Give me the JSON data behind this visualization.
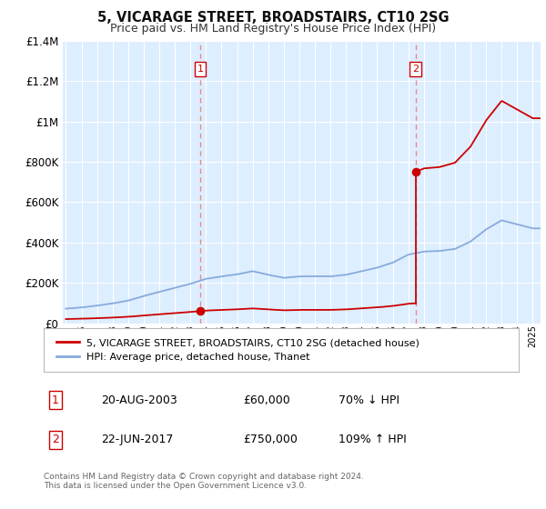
{
  "title": "5, VICARAGE STREET, BROADSTAIRS, CT10 2SG",
  "subtitle": "Price paid vs. HM Land Registry's House Price Index (HPI)",
  "footer1": "Contains HM Land Registry data © Crown copyright and database right 2024.",
  "footer2": "This data is licensed under the Open Government Licence v3.0.",
  "legend_label_red": "5, VICARAGE STREET, BROADSTAIRS, CT10 2SG (detached house)",
  "legend_label_blue": "HPI: Average price, detached house, Thanet",
  "transaction1_date": "20-AUG-2003",
  "transaction1_price": "£60,000",
  "transaction1_hpi": "70% ↓ HPI",
  "transaction1_year": 2003.63,
  "transaction1_value": 60000,
  "transaction2_date": "22-JUN-2017",
  "transaction2_price": "£750,000",
  "transaction2_hpi": "109% ↑ HPI",
  "transaction2_year": 2017.47,
  "transaction2_value": 750000,
  "ylim": [
    0,
    1400000
  ],
  "xlim_start": 1994.8,
  "xlim_end": 2025.5,
  "color_red": "#cc0000",
  "color_blue": "#88aadd",
  "color_vline": "#ee8888",
  "background_chart": "#ddeeff",
  "background_fig": "#ffffff",
  "grid_color": "#ffffff",
  "hpi_years": [
    1995,
    1996,
    1997,
    1998,
    1999,
    2000,
    2001,
    2002,
    2003,
    2004,
    2005,
    2006,
    2007,
    2008,
    2009,
    2010,
    2011,
    2012,
    2013,
    2014,
    2015,
    2016,
    2017,
    2018,
    2019,
    2020,
    2021,
    2022,
    2023,
    2024,
    2025
  ],
  "hpi_values": [
    72000,
    78000,
    87000,
    98000,
    112000,
    135000,
    155000,
    175000,
    195000,
    220000,
    232000,
    242000,
    258000,
    240000,
    225000,
    232000,
    233000,
    232000,
    240000,
    258000,
    275000,
    300000,
    340000,
    355000,
    358000,
    368000,
    405000,
    465000,
    510000,
    490000,
    470000
  ]
}
